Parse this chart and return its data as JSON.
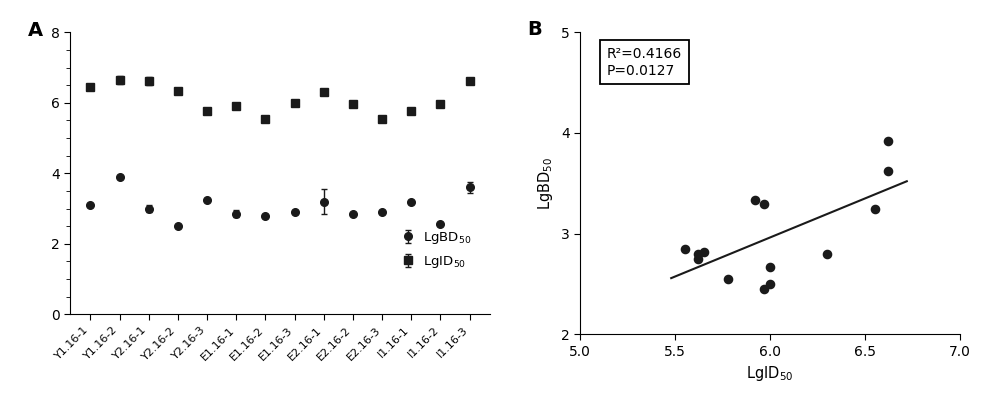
{
  "panel_A": {
    "categories": [
      "Y1.16-1",
      "Y1.16-2",
      "Y2.16-1",
      "Y2.16-2",
      "Y2.16-3",
      "E1.16-1",
      "E1.16-2",
      "E1.16-3",
      "E2.16-1",
      "E2.16-2",
      "E2.16-3",
      "I1.16-1",
      "I1.16-2",
      "I1.16-3"
    ],
    "BD50": [
      3.1,
      3.9,
      3.0,
      2.5,
      3.25,
      2.85,
      2.8,
      2.9,
      3.2,
      2.85,
      2.9,
      3.2,
      2.55,
      3.6
    ],
    "BD50_err": [
      0.0,
      0.0,
      0.1,
      0.0,
      0.0,
      0.1,
      0.0,
      0.0,
      0.35,
      0.0,
      0.0,
      0.0,
      0.0,
      0.15
    ],
    "ID50": [
      6.45,
      6.65,
      6.62,
      6.32,
      5.78,
      5.92,
      5.55,
      6.0,
      6.3,
      5.97,
      5.55,
      5.78,
      5.97,
      6.62
    ],
    "ID50_err": [
      0.0,
      0.12,
      0.12,
      0.0,
      0.08,
      0.0,
      0.0,
      0.0,
      0.0,
      0.05,
      0.0,
      0.0,
      0.08,
      0.05
    ],
    "ylim": [
      0,
      8
    ],
    "yticks": [
      0,
      2,
      4,
      6,
      8
    ],
    "panel_label": "A"
  },
  "panel_B": {
    "x": [
      5.55,
      5.62,
      5.62,
      5.65,
      5.78,
      5.92,
      5.97,
      5.97,
      6.0,
      6.0,
      6.3,
      6.55,
      6.62,
      6.62
    ],
    "y": [
      2.85,
      2.8,
      2.75,
      2.82,
      2.55,
      3.33,
      2.45,
      3.3,
      2.67,
      2.5,
      2.8,
      3.25,
      3.62,
      3.92
    ],
    "R2": "0.4166",
    "P": "0.0127",
    "xlim": [
      5.0,
      7.0
    ],
    "ylim": [
      2.0,
      5.0
    ],
    "xticks": [
      5.0,
      5.5,
      6.0,
      6.5,
      7.0
    ],
    "yticks": [
      2,
      3,
      4,
      5
    ],
    "xlabel": "LgID$_{50}$",
    "ylabel": "LgBD$_{50}$",
    "panel_label": "B",
    "line_start_x": 5.48,
    "line_end_x": 6.72
  },
  "marker_color": "#1a1a1a",
  "font_size": 11
}
